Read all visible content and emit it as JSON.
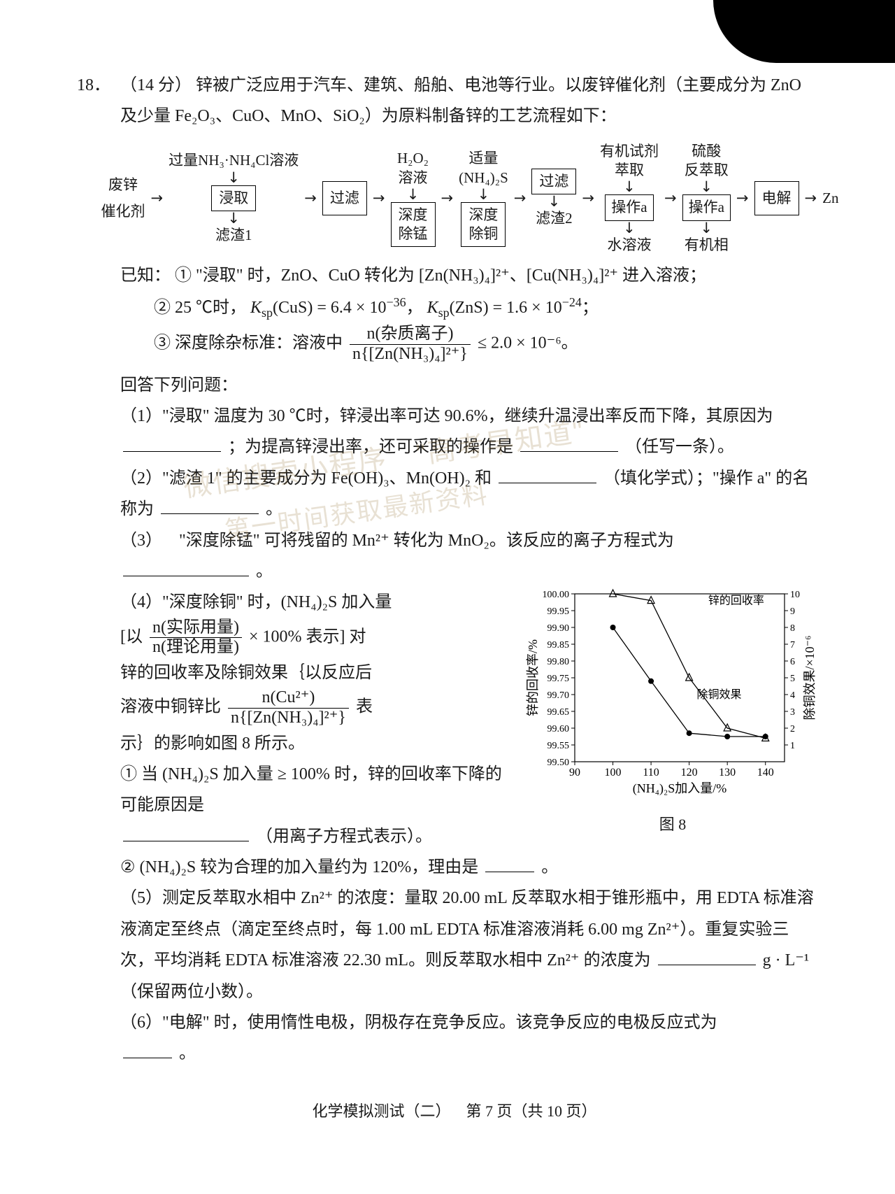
{
  "question": {
    "number": "18．",
    "points": "（14 分）",
    "intro1": "锌被广泛应用于汽车、建筑、船舶、电池等行业。以废锌催化剂（主要成分为 ZnO 及少量 Fe₂O₃、CuO、MnO、SiO₂）为原料制备锌的工艺流程如下：",
    "flow": {
      "input": "废锌\n催化剂",
      "top": [
        "过量NH₃·NH₄Cl溶液",
        "H₂O₂\n溶液",
        "适量\n(NH₄)₂S",
        "有机试剂\n萃取",
        "硫酸\n反萃取"
      ],
      "boxes": [
        "浸取",
        "过滤",
        "深度\n除锰",
        "深度\n除铜",
        "过滤",
        "操作a",
        "操作a",
        "电解"
      ],
      "out": "Zn",
      "bottom": [
        "滤渣1",
        "滤渣2",
        "水溶液",
        "有机相"
      ]
    },
    "known_label": "已知：",
    "known1": "① \"浸取\" 时，ZnO、CuO 转化为 [Zn(NH₃)₄]²⁺、[Cu(NH₃)₄]²⁺ 进入溶液；",
    "known2a": "② 25 ℃时，",
    "known2b": "Kₛₚ(CuS) = 6.4 × 10⁻³⁶，",
    "known2c": "Kₛₚ(ZnS) = 1.6 × 10⁻²⁴；",
    "known3a": "③ 深度除杂标准：溶液中",
    "known3_num": "n(杂质离子)",
    "known3_den": "n{[Zn(NH₃)₄]²⁺}",
    "known3b": "≤ 2.0 × 10⁻⁶。",
    "answer_label": "回答下列问题：",
    "q1a": "（1）\"浸取\" 温度为 30 ℃时，锌浸出率可达 90.6%，继续升温浸出率反而下降，其原因为",
    "q1b": "；为提高锌浸出率，还可采取的操作是",
    "q1c": "（任写一条）。",
    "q2a": "（2）\"滤渣 1\" 的主要成分为 Fe(OH)₃、Mn(OH)₂ 和",
    "q2b": "（填化学式）；\"操作 a\" 的名称为",
    "q2c": "。",
    "q3a": "（3） \"深度除锰\" 可将残留的 Mn²⁺ 转化为 MnO₂。该反应的离子方程式为",
    "q3b": "。",
    "q4_intro1": "（4）\"深度除铜\" 时，(NH₄)₂S 加入量",
    "q4_intro2": "[以",
    "q4_frac_num": "n(实际用量)",
    "q4_frac_den": "n(理论用量)",
    "q4_intro3": "× 100% 表示] 对",
    "q4_intro4": "锌的回收率及除铜效果｛以反应后",
    "q4_intro5": "溶液中铜锌比",
    "q4_frac2_num": "n(Cu²⁺)",
    "q4_frac2_den": "n{[Zn(NH₃)₄]²⁺}",
    "q4_intro6": "表",
    "q4_intro7": "示｝的影响如图 8 所示。",
    "q4_1a": "① 当 (NH₄)₂S 加入量 ≥ 100% 时，锌的回收率下降的可能原因是",
    "q4_1b": "（用离子方程式表示）。",
    "q4_2a": "② (NH₄)₂S 较为合理的加入量约为 120%，理由是",
    "q4_2b": "。",
    "q5a": "（5）测定反萃取水相中 Zn²⁺ 的浓度：量取 20.00 mL 反萃取水相于锥形瓶中，用 EDTA 标准溶液滴定至终点（滴定至终点时，每 1.00 mL EDTA 标准溶液消耗 6.00 mg Zn²⁺）。重复实验三次，平均消耗 EDTA 标准溶液 22.30 mL。则反萃取水相中 Zn²⁺ 的浓度为",
    "q5b": "g · L⁻¹（保留两位小数）。",
    "q6a": "（6）\"电解\" 时，使用惰性电极，阴极存在竞争反应。该竞争反应的电极反应式为",
    "q6b": "。"
  },
  "chart": {
    "x_tick_labels": [
      "90",
      "100",
      "110",
      "120",
      "130",
      "140"
    ],
    "y1_tick_labels": [
      "99.50",
      "99.55",
      "99.60",
      "99.65",
      "99.70",
      "99.75",
      "99.80",
      "99.85",
      "99.90",
      "99.95",
      "100.00"
    ],
    "y2_tick_labels": [
      "1",
      "2",
      "3",
      "4",
      "5",
      "6",
      "7",
      "8",
      "9",
      "10"
    ],
    "xlim": [
      90,
      145
    ],
    "ylim1": [
      99.5,
      100.0
    ],
    "ylim2": [
      0,
      10
    ],
    "series_recovery": {
      "label": "锌的回收率",
      "color": "#000000",
      "marker": "triangle",
      "x": [
        100,
        110,
        120,
        130,
        140
      ],
      "y": [
        100.0,
        99.98,
        99.75,
        99.6,
        99.57
      ]
    },
    "series_removal": {
      "label": "除铜效果",
      "color": "#000000",
      "marker": "circle",
      "x": [
        100,
        110,
        120,
        130,
        140
      ],
      "y2": [
        8.0,
        4.8,
        1.7,
        1.5,
        1.5
      ]
    },
    "xlabel": "(NH₄)₂S加入量/%",
    "ylabel_left": "锌的回收率/%",
    "ylabel_right": "除铜效果/×10⁻⁶",
    "caption": "图 8",
    "background_color": "#ffffff",
    "axis_color": "#000000",
    "font_size": 18
  },
  "footer": "化学模拟测试（二） 第 7 页（共 10 页）",
  "watermark1": "微信搜索小程序 \"高考早知道\"",
  "watermark2": "第一时间获取最新资料"
}
